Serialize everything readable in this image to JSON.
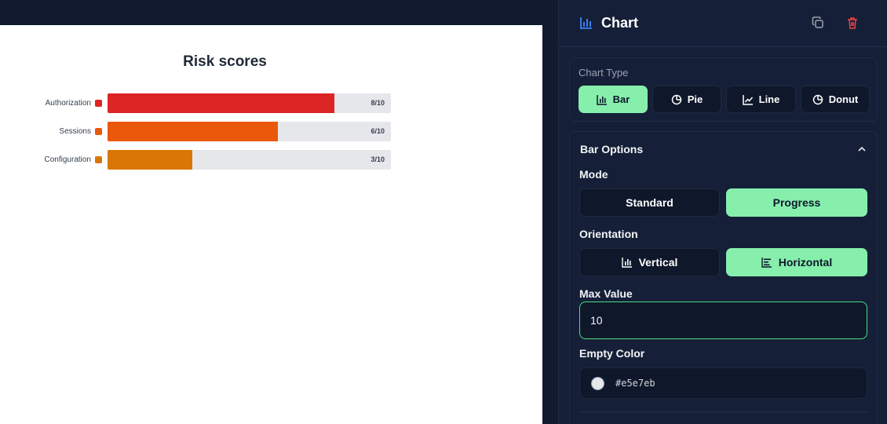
{
  "canvas": {
    "title": "Risk scores",
    "bars": [
      {
        "label": "Authorization",
        "value": 8,
        "display": "8/10",
        "color": "#dc2626"
      },
      {
        "label": "Sessions",
        "value": 6,
        "display": "6/10",
        "color": "#ea580c"
      },
      {
        "label": "Configuration",
        "value": 3,
        "display": "3/10",
        "color": "#d97706"
      }
    ],
    "max": 10,
    "empty_color": "#e5e7eb"
  },
  "chart_data": {
    "type": "bar",
    "title": "Risk scores",
    "orientation": "horizontal",
    "mode": "progress",
    "categories": [
      "Authorization",
      "Sessions",
      "Configuration"
    ],
    "values": [
      8,
      6,
      3
    ],
    "max": 10,
    "value_labels": [
      "8/10",
      "6/10",
      "3/10"
    ],
    "colors": [
      "#dc2626",
      "#ea580c",
      "#d97706"
    ],
    "empty_color": "#e5e7eb"
  },
  "panel": {
    "title": "Chart",
    "chart_type_label": "Chart Type",
    "chart_types": [
      {
        "label": "Bar",
        "icon": "bar-chart-icon",
        "active": true
      },
      {
        "label": "Pie",
        "icon": "pie-chart-icon",
        "active": false
      },
      {
        "label": "Line",
        "icon": "line-chart-icon",
        "active": false
      },
      {
        "label": "Donut",
        "icon": "donut-chart-icon",
        "active": false
      }
    ],
    "bar_options_label": "Bar Options",
    "mode_label": "Mode",
    "modes": [
      {
        "label": "Standard",
        "active": false
      },
      {
        "label": "Progress",
        "active": true
      }
    ],
    "orientation_label": "Orientation",
    "orientations": [
      {
        "label": "Vertical",
        "icon": "vertical-bars-icon",
        "active": false
      },
      {
        "label": "Horizontal",
        "icon": "horizontal-bars-icon",
        "active": true
      }
    ],
    "max_value_label": "Max Value",
    "max_value": "10",
    "empty_color_label": "Empty Color",
    "empty_color_value": "#e5e7eb"
  }
}
